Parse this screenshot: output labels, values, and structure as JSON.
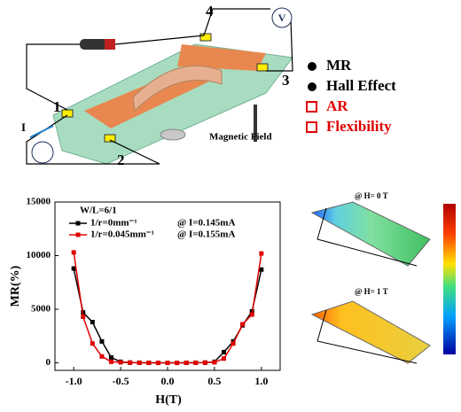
{
  "illustration": {
    "terminals": [
      "1",
      "2",
      "3",
      "4"
    ],
    "current": "I",
    "voltmeter": "V",
    "field": "Magnetic Field"
  },
  "features": [
    {
      "label": "MR",
      "color": "#000000",
      "marker": "dot"
    },
    {
      "label": "Hall Effect",
      "color": "#000000",
      "marker": "dot"
    },
    {
      "label": "AR",
      "color": "#e00000",
      "marker": "square"
    },
    {
      "label": "Flexibility",
      "color": "#e00000",
      "marker": "square"
    }
  ],
  "simulation": {
    "labels": [
      "@ H= 0 T",
      "@ H= 1 T"
    ]
  },
  "chart_data": {
    "type": "line",
    "xlabel": "H(T)",
    "ylabel": "MR(%)",
    "x": [
      -1.0,
      -0.9,
      -0.8,
      -0.7,
      -0.6,
      -0.5,
      -0.4,
      -0.3,
      -0.2,
      -0.1,
      0.0,
      0.1,
      0.2,
      0.3,
      0.4,
      0.5,
      0.6,
      0.7,
      0.8,
      0.9,
      1.0
    ],
    "series": [
      {
        "name": "1/r=0mm⁻¹",
        "color": "#000000",
        "values": [
          8800,
          4700,
          3800,
          2000,
          500,
          100,
          20,
          10,
          5,
          0,
          0,
          0,
          5,
          10,
          20,
          100,
          1000,
          2000,
          3500,
          4800,
          8700
        ]
      },
      {
        "name": "1/r=0.045mm⁻¹",
        "color": "#e00000",
        "values": [
          10300,
          4300,
          1800,
          600,
          100,
          50,
          20,
          10,
          5,
          0,
          0,
          0,
          5,
          10,
          20,
          50,
          400,
          1800,
          3600,
          4500,
          10200
        ]
      }
    ],
    "annotations": [
      "W/L=6/1",
      "@ I=0.145mA",
      "@ I=0.155mA"
    ],
    "legend": "upper left",
    "xlim": [
      -1.2,
      1.2
    ],
    "ylim": [
      -700,
      15000
    ],
    "xticks": [
      {
        "value": -1.0,
        "label": "-1.0"
      },
      {
        "value": -0.5,
        "label": "-0.5"
      },
      {
        "value": 0,
        "label": "0.0"
      },
      {
        "value": 0.5,
        "label": "0.5"
      },
      {
        "value": 1.0,
        "label": "1.0"
      }
    ],
    "yticks": [
      0,
      5000,
      10000,
      15000
    ]
  }
}
